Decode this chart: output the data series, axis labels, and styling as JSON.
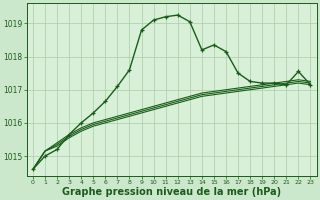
{
  "background_color": "#cce8cc",
  "plot_bg_color": "#d8f0d8",
  "grid_color": "#aacaaa",
  "line_color": "#1a5c1a",
  "xlabel": "Graphe pression niveau de la mer (hPa)",
  "xlabel_fontsize": 7,
  "xlim": [
    -0.5,
    23.5
  ],
  "ylim": [
    1014.4,
    1019.6
  ],
  "yticks": [
    1015,
    1016,
    1017,
    1018,
    1019
  ],
  "xticks": [
    0,
    1,
    2,
    3,
    4,
    5,
    6,
    7,
    8,
    9,
    10,
    11,
    12,
    13,
    14,
    15,
    16,
    17,
    18,
    19,
    20,
    21,
    22,
    23
  ],
  "series_main": {
    "x": [
      0,
      1,
      2,
      3,
      4,
      5,
      6,
      7,
      8,
      9,
      10,
      11,
      12,
      13,
      14,
      15,
      16,
      17,
      18,
      19,
      20,
      21,
      22,
      23
    ],
    "y": [
      1014.6,
      1015.0,
      1015.2,
      1015.65,
      1016.0,
      1016.3,
      1016.65,
      1017.1,
      1017.6,
      1018.8,
      1019.1,
      1019.2,
      1019.25,
      1019.05,
      1018.2,
      1018.35,
      1018.15,
      1017.5,
      1017.25,
      1017.2,
      1017.2,
      1017.15,
      1017.55,
      1017.15
    ]
  },
  "series1": {
    "x": [
      0,
      1,
      2,
      3,
      4,
      5,
      6,
      7,
      8,
      9,
      10,
      11,
      12,
      13,
      14,
      15,
      16,
      17,
      18,
      19,
      20,
      21,
      22,
      23
    ],
    "y": [
      1014.6,
      1015.15,
      1015.3,
      1015.55,
      1015.75,
      1015.9,
      1016.0,
      1016.1,
      1016.2,
      1016.3,
      1016.4,
      1016.5,
      1016.6,
      1016.7,
      1016.8,
      1016.85,
      1016.9,
      1016.95,
      1017.0,
      1017.05,
      1017.1,
      1017.15,
      1017.2,
      1017.15
    ]
  },
  "series2": {
    "x": [
      0,
      1,
      2,
      3,
      4,
      5,
      6,
      7,
      8,
      9,
      10,
      11,
      12,
      13,
      14,
      15,
      16,
      17,
      18,
      19,
      20,
      21,
      22,
      23
    ],
    "y": [
      1014.6,
      1015.15,
      1015.35,
      1015.6,
      1015.8,
      1015.95,
      1016.05,
      1016.15,
      1016.25,
      1016.35,
      1016.45,
      1016.55,
      1016.65,
      1016.75,
      1016.85,
      1016.9,
      1016.95,
      1017.0,
      1017.05,
      1017.1,
      1017.15,
      1017.2,
      1017.25,
      1017.2
    ]
  },
  "series3": {
    "x": [
      0,
      1,
      2,
      3,
      4,
      5,
      6,
      7,
      8,
      9,
      10,
      11,
      12,
      13,
      14,
      15,
      16,
      17,
      18,
      19,
      20,
      21,
      22,
      23
    ],
    "y": [
      1014.6,
      1015.15,
      1015.4,
      1015.65,
      1015.85,
      1016.0,
      1016.1,
      1016.2,
      1016.3,
      1016.4,
      1016.5,
      1016.6,
      1016.7,
      1016.8,
      1016.9,
      1016.95,
      1017.0,
      1017.05,
      1017.1,
      1017.15,
      1017.2,
      1017.25,
      1017.3,
      1017.25
    ]
  }
}
